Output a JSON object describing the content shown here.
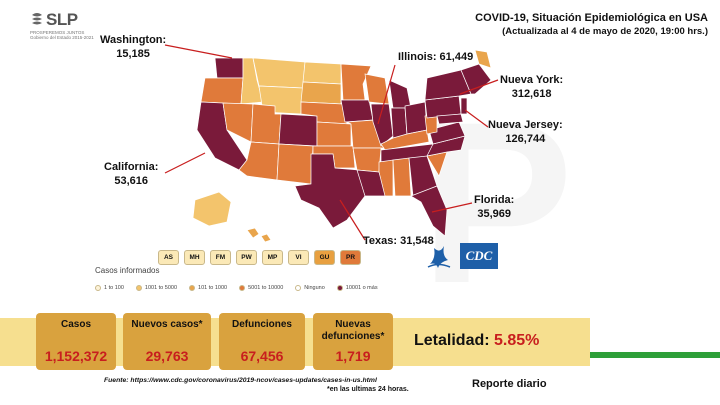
{
  "logo": {
    "name": "SLP",
    "tagline": "PROSPEREMOS JUNTOS",
    "subtagline": "Gobierno del Estado 2015-2021"
  },
  "header": {
    "title": "COVID-19, Situación Epidemiológica en USA",
    "subtitle": "(Actualizada al 4 de mayo de 2020, 19:00 hrs.)"
  },
  "callouts": {
    "washington": {
      "name": "Washington:",
      "value": "15,185"
    },
    "illinois": {
      "label": "Illinois: 61,449"
    },
    "new_york": {
      "name": "Nueva York:",
      "value": "312,618"
    },
    "new_jersey": {
      "name": "Nueva Jersey:",
      "value": "126,744"
    },
    "california": {
      "name": "California:",
      "value": "53,616"
    },
    "florida": {
      "name": "Florida:",
      "value": "35,969"
    },
    "texas": {
      "label": "Texas: 31,548"
    }
  },
  "territories": [
    "AS",
    "MH",
    "FM",
    "PW",
    "MP",
    "VI",
    "GU",
    "PR"
  ],
  "territory_colors": [
    "#fbe9b7",
    "#fbe9b7",
    "#fbe9b7",
    "#fbe9b7",
    "#fbe9b7",
    "#fbe9b7",
    "#e8a040",
    "#e07a3a"
  ],
  "agency_logo": "CDC",
  "legend": {
    "title": "Casos informados",
    "items": [
      {
        "label": "1 to 100",
        "color": "#fdf3d9"
      },
      {
        "label": "1001 to 5000",
        "color": "#f3c46c"
      },
      {
        "label": "101 to 1000",
        "color": "#e9a54c"
      },
      {
        "label": "5001 to 10000",
        "color": "#e07a3a"
      },
      {
        "label": "Ninguno",
        "color": "#ffffff"
      },
      {
        "label": "10001 o más",
        "color": "#7a1a3a"
      }
    ]
  },
  "stats": {
    "casos": {
      "label": "Casos",
      "value": "1,152,372"
    },
    "nuevos": {
      "label": "Nuevos casos*",
      "value": "29,763"
    },
    "defunciones": {
      "label": "Defunciones",
      "value": "67,456"
    },
    "nuevas_def": {
      "label": "Nuevas defunciones*",
      "value": "1,719"
    }
  },
  "letalidad": {
    "label": "Letalidad:",
    "value": "5.85%"
  },
  "footer": {
    "fuente": "Fuente: https://www.cdc.gov/coronavirus/2019-ncov/cases-updates/cases-in-us.html",
    "nota": "*en las ultimas 24 horas.",
    "reporte": "Reporte diario"
  },
  "colors": {
    "accent_red": "#c81e1e",
    "tile": "#d9a23e",
    "banner": "#f6df8f",
    "green": "#2e9f39"
  }
}
